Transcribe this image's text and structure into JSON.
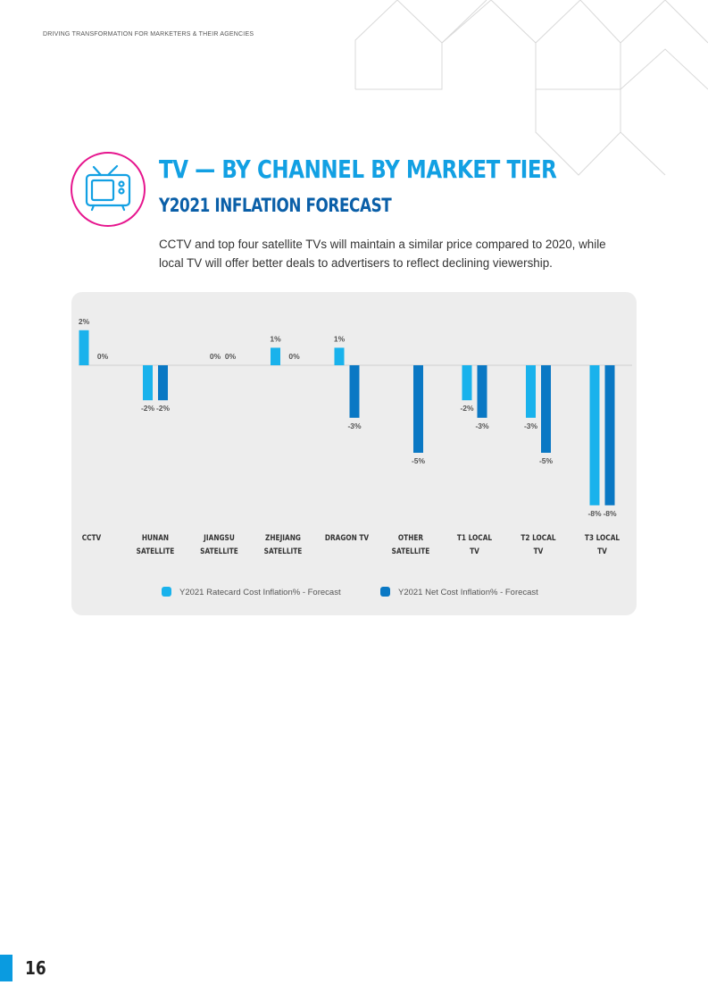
{
  "header": {
    "text": "DRIVING TRANSFORMATION FOR MARKETERS & THEIR AGENCIES"
  },
  "title": "TV — BY CHANNEL BY MARKET TIER",
  "subtitle": "Y2021 INFLATION FORECAST",
  "intro": {
    "line1": "CCTV and top four satellite TVs will maintain a similar price compared to 2020, while",
    "line2": "local TV will offer better deals to advertisers to reflect declining viewership."
  },
  "colors": {
    "accent_blue": "#12a0e3",
    "dark_blue": "#0a5fa8",
    "icon_pink": "#e6168e",
    "series_light": "#19b2ec",
    "series_dark": "#0a78c4",
    "panel_bg": "#ededed"
  },
  "icons": {
    "tv": "tv-icon"
  },
  "chart_data": {
    "type": "bar",
    "categories": [
      [
        "CCTV"
      ],
      [
        "HUNAN",
        "SATELLITE"
      ],
      [
        "JIANGSU",
        "SATELLITE"
      ],
      [
        "ZHEJIANG",
        "SATELLITE"
      ],
      [
        "DRAGON TV"
      ],
      [
        "OTHER",
        "SATELLITE"
      ],
      [
        "T1 LOCAL",
        "TV"
      ],
      [
        "T2 LOCAL",
        "TV"
      ],
      [
        "T3 LOCAL",
        "TV"
      ]
    ],
    "series": [
      {
        "name": "Y2021 Ratecard Cost Inflation% - Forecast",
        "color": "#19b2ec",
        "values": [
          2,
          -2,
          0,
          1,
          1,
          null,
          -2,
          -3,
          -8
        ],
        "labels": [
          "2%",
          "-2%",
          "0%",
          "1%",
          "1%",
          "",
          "-2%",
          "-3%",
          "-8%"
        ]
      },
      {
        "name": "Y2021 Net Cost Inflation% - Forecast",
        "color": "#0a78c4",
        "values": [
          0,
          -2,
          0,
          0,
          -3,
          -5,
          -3,
          -5,
          -8
        ],
        "labels": [
          "0%",
          "-2%",
          "0%",
          "0%",
          "-3%",
          "-5%",
          "-3%",
          "-5%",
          "-8%"
        ]
      }
    ],
    "ylim": [
      -8,
      2
    ],
    "grid": false,
    "legend": "bottom-center",
    "unit": "%"
  },
  "page": {
    "number": "16"
  }
}
